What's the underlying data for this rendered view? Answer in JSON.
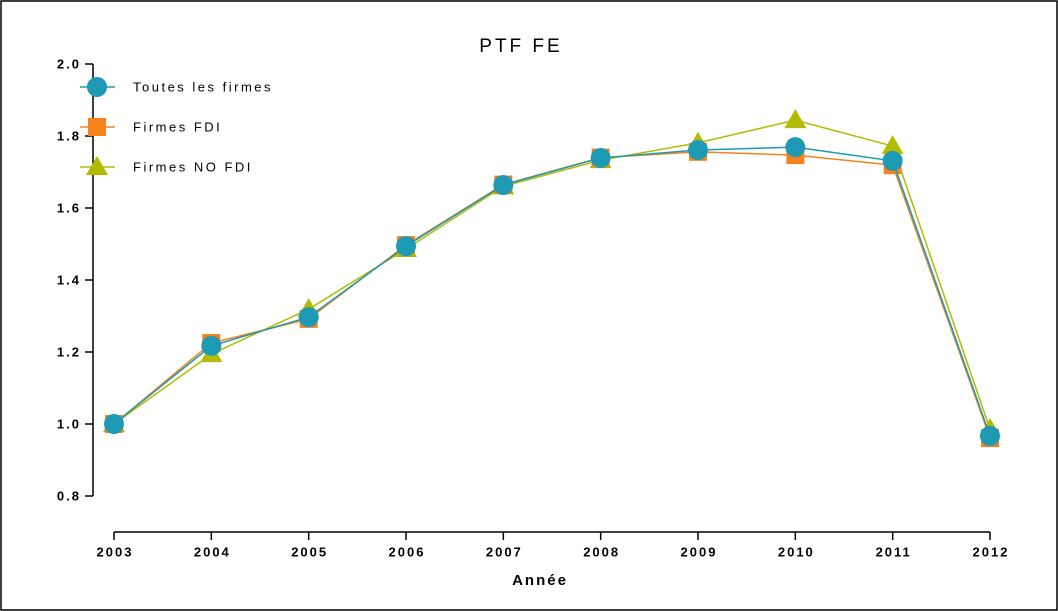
{
  "chart_data": {
    "type": "line",
    "title": "PTF FE",
    "xlabel": "Année",
    "categories": [
      "2003",
      "2004",
      "2005",
      "2006",
      "2007",
      "2008",
      "2009",
      "2010",
      "2011",
      "2012"
    ],
    "series": [
      {
        "name": "Toutes les firmes",
        "color": "#1f9ab4",
        "marker": "circle",
        "values": [
          1.0,
          1.217,
          1.297,
          1.494,
          1.664,
          1.739,
          1.761,
          1.769,
          1.731,
          0.967
        ]
      },
      {
        "name": "Firmes FDI",
        "color": "#f7831e",
        "marker": "square",
        "values": [
          1.0,
          1.225,
          1.292,
          1.497,
          1.665,
          1.74,
          1.756,
          1.747,
          1.719,
          0.961
        ]
      },
      {
        "name": "Firmes NO FDI",
        "color": "#b3bb00",
        "marker": "triangle",
        "values": [
          1.0,
          1.194,
          1.319,
          1.486,
          1.66,
          1.733,
          1.781,
          1.844,
          1.772,
          0.986
        ]
      }
    ],
    "ylim": [
      0.8,
      2.0
    ],
    "yticks": [
      0.8,
      {
        "value": 1.0,
        "label": "1.0"
      },
      1.2,
      1.4,
      1.6,
      1.8,
      {
        "value": 2.0,
        "label": "2.0"
      }
    ],
    "legend": "upper left",
    "grid": false
  }
}
